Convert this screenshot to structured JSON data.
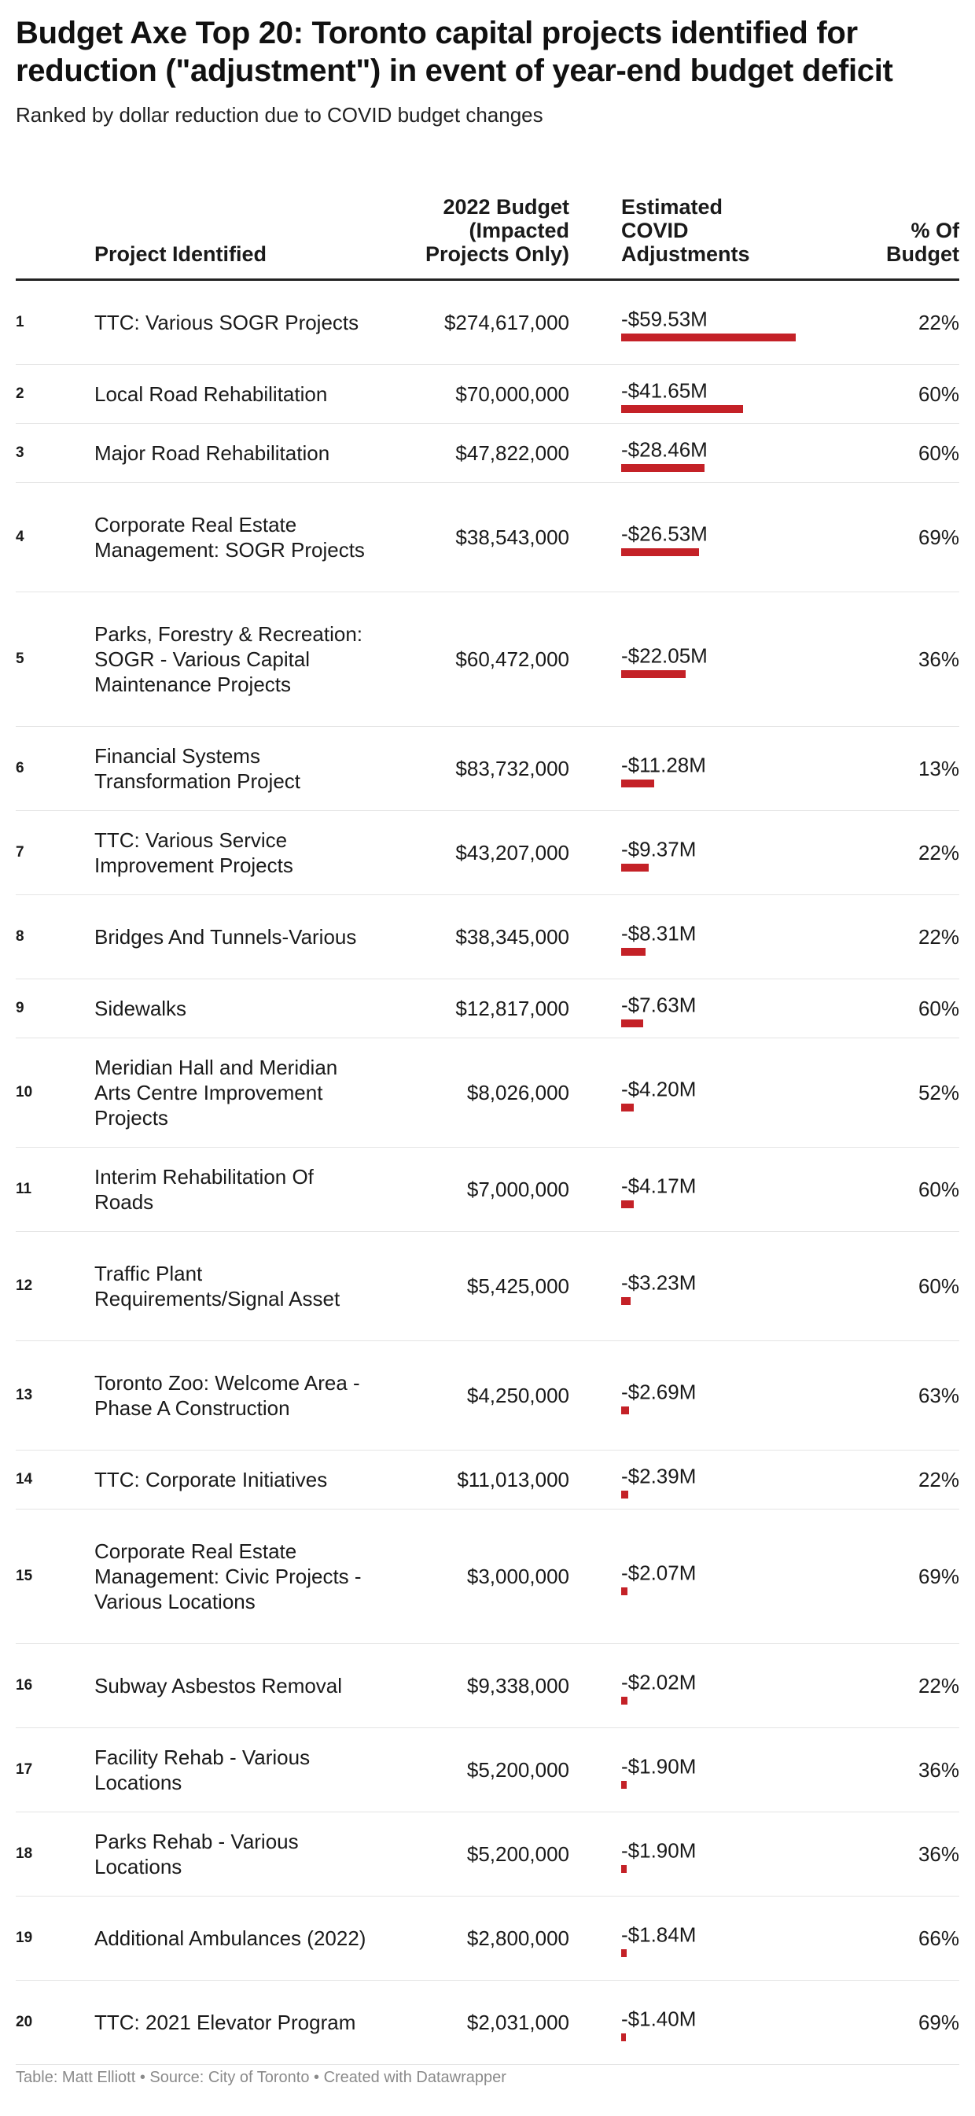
{
  "title": "Budget Axe Top 20: Toronto capital projects identified for reduction (\"adjustment\") in event of year-end budget deficit",
  "subtitle": "Ranked by dollar reduction due to COVID budget changes",
  "columns": {
    "project": "Project Identified",
    "budget": "2022 Budget (Impacted Projects Only)",
    "adjustment": "Estimated COVID Adjustments",
    "percent": "% Of Budget"
  },
  "footer": "Table: Matt Elliott • Source: City of Toronto • Created with Datawrapper",
  "colors": {
    "bar": "#c42127",
    "rule": "#222222",
    "divider": "#e4e4e4",
    "footer": "#8a8a8a"
  },
  "chart_data": {
    "type": "table",
    "title": "Budget Axe Top 20: Toronto capital projects identified for reduction (\"adjustment\") in event of year-end budget deficit",
    "subtitle": "Ranked by dollar reduction due to COVID budget changes",
    "adjustment_max_millions": 59.53,
    "rows": [
      {
        "rank": "1",
        "project": "TTC: Various SOGR Projects",
        "budget": "$274,617,000",
        "adjustment": "-$59.53M",
        "adjustment_millions": 59.53,
        "percent": "22%"
      },
      {
        "rank": "2",
        "project": "Local Road Rehabilitation",
        "budget": "$70,000,000",
        "adjustment": "-$41.65M",
        "adjustment_millions": 41.65,
        "percent": "60%"
      },
      {
        "rank": "3",
        "project": "Major Road Rehabilitation",
        "budget": "$47,822,000",
        "adjustment": "-$28.46M",
        "adjustment_millions": 28.46,
        "percent": "60%"
      },
      {
        "rank": "4",
        "project": "Corporate Real Estate Management: SOGR Projects",
        "budget": "$38,543,000",
        "adjustment": "-$26.53M",
        "adjustment_millions": 26.53,
        "percent": "69%"
      },
      {
        "rank": "5",
        "project": "Parks, Forestry & Recreation: SOGR - Various Capital Maintenance Projects",
        "budget": "$60,472,000",
        "adjustment": "-$22.05M",
        "adjustment_millions": 22.05,
        "percent": "36%"
      },
      {
        "rank": "6",
        "project": "Financial Systems Transformation Project",
        "budget": "$83,732,000",
        "adjustment": "-$11.28M",
        "adjustment_millions": 11.28,
        "percent": "13%"
      },
      {
        "rank": "7",
        "project": "TTC: Various Service Improvement Projects",
        "budget": "$43,207,000",
        "adjustment": "-$9.37M",
        "adjustment_millions": 9.37,
        "percent": "22%"
      },
      {
        "rank": "8",
        "project": "Bridges And Tunnels-Various",
        "budget": "$38,345,000",
        "adjustment": "-$8.31M",
        "adjustment_millions": 8.31,
        "percent": "22%"
      },
      {
        "rank": "9",
        "project": "Sidewalks",
        "budget": "$12,817,000",
        "adjustment": "-$7.63M",
        "adjustment_millions": 7.63,
        "percent": "60%"
      },
      {
        "rank": "10",
        "project": "Meridian Hall and Meridian Arts Centre Improvement Projects",
        "budget": "$8,026,000",
        "adjustment": "-$4.20M",
        "adjustment_millions": 4.2,
        "percent": "52%"
      },
      {
        "rank": "11",
        "project": "Interim Rehabilitation Of Roads",
        "budget": "$7,000,000",
        "adjustment": "-$4.17M",
        "adjustment_millions": 4.17,
        "percent": "60%"
      },
      {
        "rank": "12",
        "project": "Traffic Plant Requirements/Signal Asset",
        "budget": "$5,425,000",
        "adjustment": "-$3.23M",
        "adjustment_millions": 3.23,
        "percent": "60%"
      },
      {
        "rank": "13",
        "project": "Toronto Zoo: Welcome Area - Phase A Construction",
        "budget": "$4,250,000",
        "adjustment": "-$2.69M",
        "adjustment_millions": 2.69,
        "percent": "63%"
      },
      {
        "rank": "14",
        "project": "TTC: Corporate Initiatives",
        "budget": "$11,013,000",
        "adjustment": "-$2.39M",
        "adjustment_millions": 2.39,
        "percent": "22%"
      },
      {
        "rank": "15",
        "project": "Corporate Real Estate Management: Civic Projects - Various Locations",
        "budget": "$3,000,000",
        "adjustment": "-$2.07M",
        "adjustment_millions": 2.07,
        "percent": "69%"
      },
      {
        "rank": "16",
        "project": "Subway Asbestos Removal",
        "budget": "$9,338,000",
        "adjustment": "-$2.02M",
        "adjustment_millions": 2.02,
        "percent": "22%"
      },
      {
        "rank": "17",
        "project": "Facility Rehab - Various Locations",
        "budget": "$5,200,000",
        "adjustment": "-$1.90M",
        "adjustment_millions": 1.9,
        "percent": "36%"
      },
      {
        "rank": "18",
        "project": "Parks Rehab - Various Locations",
        "budget": "$5,200,000",
        "adjustment": "-$1.90M",
        "adjustment_millions": 1.9,
        "percent": "36%"
      },
      {
        "rank": "19",
        "project": "Additional Ambulances (2022)",
        "budget": "$2,800,000",
        "adjustment": "-$1.84M",
        "adjustment_millions": 1.84,
        "percent": "66%"
      },
      {
        "rank": "20",
        "project": "TTC: 2021 Elevator Program",
        "budget": "$2,031,000",
        "adjustment": "-$1.40M",
        "adjustment_millions": 1.4,
        "percent": "69%"
      }
    ]
  }
}
